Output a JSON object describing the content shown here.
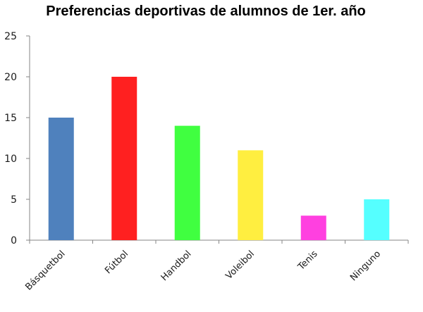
{
  "chart_data": {
    "type": "bar",
    "title": "Preferencias deportivas de alumnos de 1er. año",
    "xlabel": "",
    "ylabel": "",
    "categories": [
      "Básquetbol",
      "Fútbol",
      "Handbol",
      "Voleibol",
      "Tenis",
      "Ninguno"
    ],
    "values": [
      15,
      20,
      14,
      11,
      3,
      5
    ],
    "colors": [
      "#4f81bd",
      "#ff2020",
      "#40ff40",
      "#ffee40",
      "#ff40e0",
      "#55ffff"
    ],
    "ylim": [
      0,
      25
    ],
    "yticks": [
      "0",
      "5",
      "10",
      "15",
      "20",
      "25"
    ],
    "grid": false,
    "legend": "none"
  }
}
